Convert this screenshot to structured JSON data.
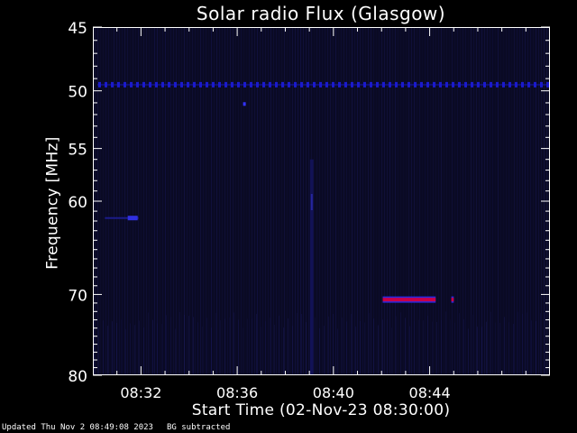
{
  "chart_data": {
    "type": "heatmap",
    "title": "Solar radio Flux (Glasgow)",
    "xlabel": "Start Time (02-Nov-23 08:30:00)",
    "ylabel": "Frequency [MHz]",
    "x_range_minutes": [
      0,
      19
    ],
    "x_ticks": [
      {
        "minute": 2,
        "label": "08:32"
      },
      {
        "minute": 6,
        "label": "08:36"
      },
      {
        "minute": 10,
        "label": "08:40"
      },
      {
        "minute": 14,
        "label": "08:44"
      }
    ],
    "y_range_mhz": [
      45,
      80
    ],
    "y_scale": "log",
    "y_ticks": [
      45,
      50,
      55,
      60,
      70,
      80
    ],
    "grid": false,
    "background_color": "#0a0a24",
    "features": [
      {
        "kind": "horizontal band",
        "frequency_mhz": 49.5,
        "from_minute": 0,
        "to_minute": 19,
        "color": "#1a1acc"
      },
      {
        "kind": "dot",
        "minute": 6.3,
        "frequency_mhz": 51.1,
        "color": "#3333ff"
      },
      {
        "kind": "vertical streak",
        "minute": 9.1,
        "from_mhz": 56,
        "to_mhz": 80,
        "color": "#141460"
      },
      {
        "kind": "emission",
        "minute_from": 0.5,
        "minute_to": 1.9,
        "frequency_mhz": 61.7,
        "color": "#3030e0"
      },
      {
        "kind": "emission",
        "minute_from": 12.05,
        "minute_to": 14.25,
        "frequency_mhz": 70.6,
        "color": "#c8004a"
      },
      {
        "kind": "emission",
        "minute_from": 14.9,
        "minute_to": 15.0,
        "frequency_mhz": 70.6,
        "color": "#c8004a"
      }
    ]
  },
  "footer": {
    "updated": "Updated Thu Nov  2 08:49:08 2023",
    "background": "BG subtracted"
  }
}
